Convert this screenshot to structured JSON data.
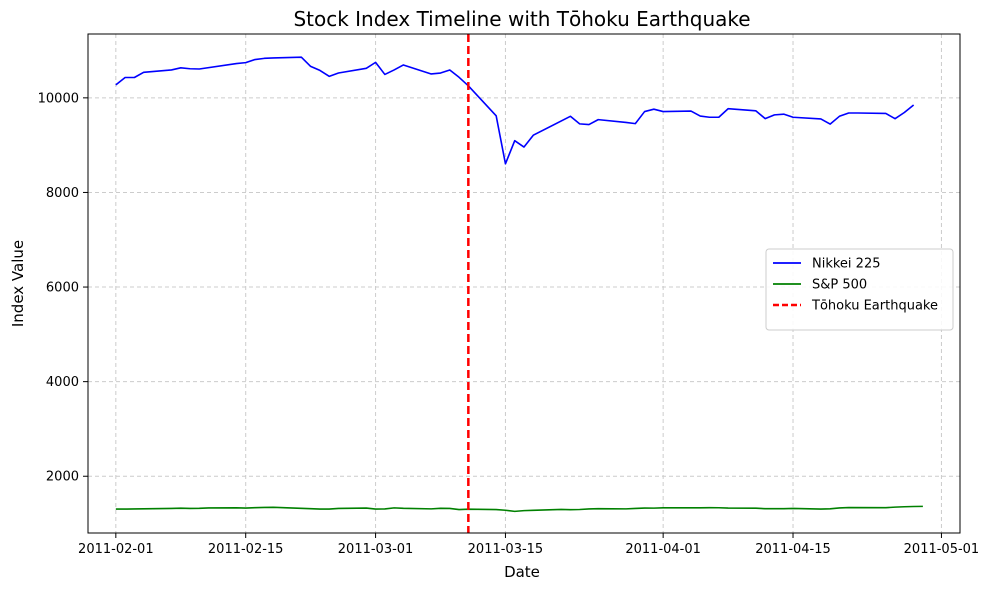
{
  "chart_data": {
    "type": "line",
    "title": "Stock Index Timeline with Tōhoku Earthquake",
    "xlabel": "Date",
    "ylabel": "Index Value",
    "x_type": "date",
    "xlim": [
      "2011-01-29",
      "2011-05-03"
    ],
    "ylim": [
      800,
      11350
    ],
    "x_ticks": [
      "2011-02-01",
      "2011-02-15",
      "2011-03-01",
      "2011-03-15",
      "2011-04-01",
      "2011-04-15",
      "2011-05-01"
    ],
    "y_ticks": [
      2000,
      4000,
      6000,
      8000,
      10000
    ],
    "grid": true,
    "legend_position": "center-right",
    "series": [
      {
        "name": "Nikkei 225",
        "color": "#0000ff",
        "style": "solid",
        "x": [
          "2011-02-01",
          "2011-02-02",
          "2011-02-03",
          "2011-02-04",
          "2011-02-07",
          "2011-02-08",
          "2011-02-09",
          "2011-02-10",
          "2011-02-14",
          "2011-02-15",
          "2011-02-16",
          "2011-02-17",
          "2011-02-18",
          "2011-02-21",
          "2011-02-22",
          "2011-02-23",
          "2011-02-24",
          "2011-02-25",
          "2011-02-28",
          "2011-03-01",
          "2011-03-02",
          "2011-03-03",
          "2011-03-04",
          "2011-03-07",
          "2011-03-08",
          "2011-03-09",
          "2011-03-10",
          "2011-03-11",
          "2011-03-14",
          "2011-03-15",
          "2011-03-16",
          "2011-03-17",
          "2011-03-18",
          "2011-03-22",
          "2011-03-23",
          "2011-03-24",
          "2011-03-25",
          "2011-03-28",
          "2011-03-29",
          "2011-03-30",
          "2011-03-31",
          "2011-04-01",
          "2011-04-04",
          "2011-04-05",
          "2011-04-06",
          "2011-04-07",
          "2011-04-08",
          "2011-04-11",
          "2011-04-12",
          "2011-04-13",
          "2011-04-14",
          "2011-04-15",
          "2011-04-18",
          "2011-04-19",
          "2011-04-20",
          "2011-04-21",
          "2011-04-22",
          "2011-04-25",
          "2011-04-26",
          "2011-04-27",
          "2011-04-28"
        ],
        "values": [
          10275,
          10430,
          10430,
          10540,
          10590,
          10635,
          10615,
          10610,
          10725,
          10745,
          10810,
          10835,
          10845,
          10860,
          10665,
          10580,
          10455,
          10525,
          10625,
          10750,
          10495,
          10590,
          10695,
          10505,
          10525,
          10590,
          10435,
          10255,
          9620,
          8605,
          9095,
          8960,
          9210,
          9610,
          9450,
          9435,
          9540,
          9480,
          9455,
          9710,
          9760,
          9710,
          9720,
          9615,
          9590,
          9590,
          9770,
          9725,
          9560,
          9640,
          9655,
          9590,
          9555,
          9445,
          9610,
          9680,
          9680,
          9670,
          9560,
          9690,
          9850
        ]
      },
      {
        "name": "S&P 500",
        "color": "#008000",
        "style": "solid",
        "x": [
          "2011-02-01",
          "2011-02-02",
          "2011-02-03",
          "2011-02-04",
          "2011-02-07",
          "2011-02-08",
          "2011-02-09",
          "2011-02-10",
          "2011-02-11",
          "2011-02-14",
          "2011-02-15",
          "2011-02-16",
          "2011-02-17",
          "2011-02-18",
          "2011-02-22",
          "2011-02-23",
          "2011-02-24",
          "2011-02-25",
          "2011-02-28",
          "2011-03-01",
          "2011-03-02",
          "2011-03-03",
          "2011-03-04",
          "2011-03-07",
          "2011-03-08",
          "2011-03-09",
          "2011-03-10",
          "2011-03-11",
          "2011-03-14",
          "2011-03-15",
          "2011-03-16",
          "2011-03-17",
          "2011-03-18",
          "2011-03-21",
          "2011-03-22",
          "2011-03-23",
          "2011-03-24",
          "2011-03-25",
          "2011-03-28",
          "2011-03-29",
          "2011-03-30",
          "2011-03-31",
          "2011-04-01",
          "2011-04-04",
          "2011-04-05",
          "2011-04-06",
          "2011-04-07",
          "2011-04-08",
          "2011-04-11",
          "2011-04-12",
          "2011-04-13",
          "2011-04-14",
          "2011-04-15",
          "2011-04-18",
          "2011-04-19",
          "2011-04-20",
          "2011-04-21",
          "2011-04-25",
          "2011-04-26",
          "2011-04-27",
          "2011-04-28",
          "2011-04-29"
        ],
        "values": [
          1307,
          1305,
          1308,
          1311,
          1320,
          1324,
          1320,
          1321,
          1329,
          1332,
          1328,
          1336,
          1340,
          1343,
          1315,
          1307,
          1306,
          1319,
          1327,
          1306,
          1308,
          1331,
          1321,
          1310,
          1321,
          1320,
          1295,
          1304,
          1296,
          1281,
          1257,
          1273,
          1279,
          1298,
          1293,
          1297,
          1309,
          1314,
          1310,
          1319,
          1328,
          1326,
          1332,
          1333,
          1332,
          1335,
          1334,
          1328,
          1324,
          1314,
          1314,
          1315,
          1320,
          1305,
          1312,
          1330,
          1337,
          1335,
          1347,
          1355,
          1360,
          1363
        ]
      }
    ],
    "annotations": [
      {
        "type": "vline",
        "x": "2011-03-11",
        "name": "Tōhoku Earthquake",
        "color": "#ff0000",
        "style": "dashed"
      }
    ]
  }
}
